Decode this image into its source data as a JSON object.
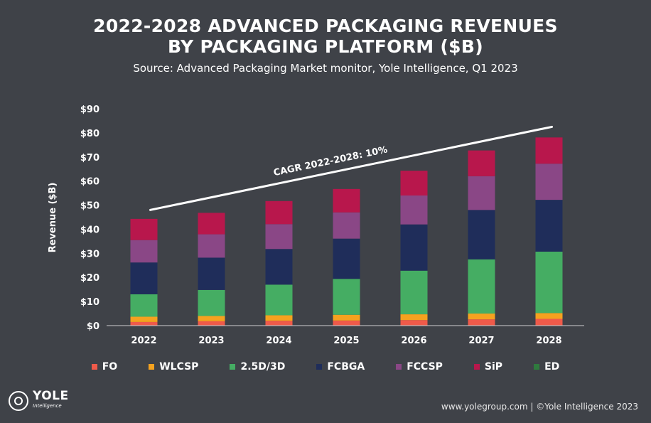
{
  "header": {
    "title_line1": "2022-2028 ADVANCED PACKAGING REVENUES",
    "title_line2": "BY PACKAGING PLATFORM ($B)",
    "subtitle": "Source: Advanced Packaging Market monitor, Yole Intelligence, Q1 2023"
  },
  "chart_data": {
    "type": "bar",
    "stacked": true,
    "title": "2022-2028 ADVANCED PACKAGING REVENUES BY PACKAGING PLATFORM ($B)",
    "ylabel": "Revenue ($B)",
    "xlabel": "",
    "ylim": [
      0,
      90
    ],
    "yticks": [
      "$0",
      "$10",
      "$20",
      "$30",
      "$40",
      "$50",
      "$60",
      "$70",
      "$80",
      "$90"
    ],
    "ytick_values": [
      0,
      10,
      20,
      30,
      40,
      50,
      60,
      70,
      80,
      90
    ],
    "categories": [
      "2022",
      "2023",
      "2024",
      "2025",
      "2026",
      "2027",
      "2028"
    ],
    "series": [
      {
        "name": "FO",
        "color": "#ef5a4a",
        "values": [
          1.5,
          1.8,
          2.0,
          2.1,
          2.3,
          2.6,
          2.8
        ]
      },
      {
        "name": "WLCSP",
        "color": "#f5a21f",
        "values": [
          2.2,
          2.2,
          2.3,
          2.4,
          2.4,
          2.4,
          2.4
        ]
      },
      {
        "name": "2.5D/3D",
        "color": "#45ad63",
        "values": [
          9.3,
          10.8,
          12.7,
          14.9,
          18.1,
          22.5,
          25.5
        ]
      },
      {
        "name": "FCBGA",
        "color": "#1f2d5a",
        "values": [
          13.2,
          13.4,
          14.8,
          16.7,
          19.2,
          20.5,
          21.5
        ]
      },
      {
        "name": "FCCSP",
        "color": "#8a4786",
        "values": [
          9.3,
          9.7,
          10.3,
          10.9,
          12.0,
          14.0,
          15.0
        ]
      },
      {
        "name": "SiP",
        "color": "#b8174c",
        "values": [
          8.8,
          8.9,
          9.6,
          9.7,
          10.3,
          10.7,
          10.9
        ]
      },
      {
        "name": "ED",
        "color": "#2f7a3e",
        "values": [
          0,
          0,
          0,
          0,
          0,
          0,
          0
        ]
      }
    ],
    "annotation": {
      "text": "CAGR 2022-2028: 10%",
      "from": [
        "2022",
        48
      ],
      "to": [
        "2028",
        82.5
      ]
    },
    "grid": false,
    "legend": "bottom"
  },
  "footer": {
    "brand": "YOLE",
    "brand_sub": "Intelligence",
    "credit": "www.yolegroup.com | ©Yole Intelligence 2023"
  }
}
